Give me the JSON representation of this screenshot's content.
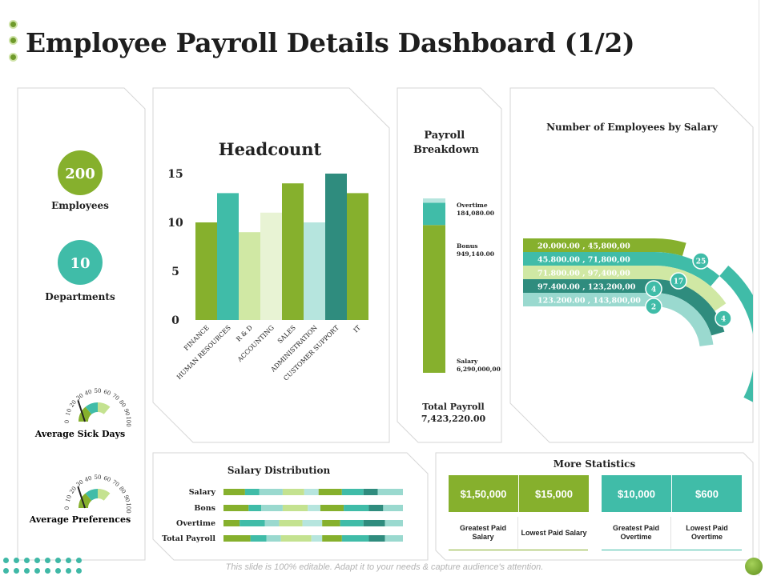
{
  "page": {
    "title": "Employee Payroll Details Dashboard (1/2)",
    "footer": "This slide is 100% editable. Adapt it to your needs & capture audience's attention."
  },
  "colors": {
    "green": "#86b02d",
    "teal": "#40bca8",
    "light_green": "#d0e8a4",
    "pale_green": "#e8f3d4",
    "light_teal": "#b6e5de",
    "dark_teal": "#2f8c7e"
  },
  "kpis": {
    "employees": {
      "value": "200",
      "label": "Employees"
    },
    "departments": {
      "value": "10",
      "label": "Departments"
    }
  },
  "gauges": {
    "sick_days": {
      "label": "Average Sick Days",
      "ticks": [
        "0",
        "10",
        "20",
        "30",
        "40",
        "50",
        "60",
        "70",
        "80",
        "90",
        "100"
      ],
      "value": 40
    },
    "preferences": {
      "label": "Average Preferences",
      "ticks": [
        "0",
        "10",
        "20",
        "30",
        "40",
        "50",
        "60",
        "70",
        "80",
        "90",
        "100"
      ],
      "value": 40
    }
  },
  "chart_data": [
    {
      "type": "bar",
      "title": "Headcount",
      "categories": [
        "FINANCE",
        "HUMAN RESOURCES",
        "R & D",
        "ACCOUNTING",
        "SALES",
        "ADMINISTRATION",
        "CUSTOMER SUPPORT",
        "IT"
      ],
      "values": [
        10,
        13,
        9,
        11,
        14,
        10,
        15,
        13
      ],
      "bar_colors": [
        "#86b02d",
        "#40bca8",
        "#d0e8a4",
        "#e8f3d4",
        "#86b02d",
        "#b6e5de",
        "#2f8c7e",
        "#86b02d"
      ],
      "yticks": [
        "0",
        "5",
        "10",
        "15"
      ],
      "ylim": [
        0,
        15
      ],
      "grid": false
    },
    {
      "type": "bar",
      "title": "Payroll Breakdown",
      "stacked": true,
      "segments": [
        {
          "name": "Salary",
          "value": 6290000,
          "label": "6,290,000,00",
          "color": "#86b02d"
        },
        {
          "name": "Bonus",
          "value": 949140,
          "label": "949,140.00",
          "color": "#40bca8"
        },
        {
          "name": "Overtime",
          "value": 184080,
          "label": "184,080.00",
          "color": "#b6e5de"
        }
      ],
      "total_label": "Total Payroll",
      "total_value": "7,423,220.00"
    },
    {
      "type": "bar",
      "title": "Number of Employees by Salary",
      "bands": [
        {
          "range": "20.000.00   ,   45,800,00",
          "count": "25",
          "color": "#86b02d"
        },
        {
          "range": "45.800.00   ,   71,800,00",
          "count": "",
          "color": "#40bca8"
        },
        {
          "range": "71.800.00   ,   97,400,00",
          "count": "17",
          "color": "#d0e8a4"
        },
        {
          "range": "97.400.00   ,   123,200,00",
          "count": "4",
          "color": "#2f8c7e"
        },
        {
          "range": "123.200.00   ,   143,800,00",
          "count": "2",
          "color": "#9ad9cf"
        }
      ],
      "extra_count": "4"
    },
    {
      "type": "bar",
      "title": "Salary Distribution",
      "stacked": true,
      "categories": [
        "Salary",
        "Bons",
        "Overtime",
        "Total Payroll"
      ],
      "segment_colors": [
        "#86b02d",
        "#40bca8",
        "#9ad9cf",
        "#c4e290",
        "#b6e5de",
        "#86b02d",
        "#40bca8",
        "#2f8c7e",
        "#9ad9cf"
      ],
      "rows": [
        [
          12,
          8,
          13,
          12,
          8,
          13,
          12,
          8,
          14
        ],
        [
          14,
          7,
          12,
          14,
          7,
          13,
          14,
          8,
          11
        ],
        [
          9,
          14,
          8,
          13,
          11,
          10,
          13,
          12,
          10
        ],
        [
          15,
          9,
          8,
          17,
          6,
          11,
          15,
          9,
          10
        ]
      ]
    }
  ],
  "more_statistics": {
    "title": "More Statistics",
    "items": [
      {
        "value": "$1,50,000",
        "label": "Greatest Paid Salary",
        "color": "#86b02d"
      },
      {
        "value": "$15,000",
        "label": "Lowest Paid Salary",
        "color": "#86b02d"
      },
      {
        "value": "$10,000",
        "label": "Greatest Paid Overtime",
        "color": "#40bca8"
      },
      {
        "value": "$600",
        "label": "Lowest Paid Overtime",
        "color": "#40bca8"
      }
    ]
  }
}
